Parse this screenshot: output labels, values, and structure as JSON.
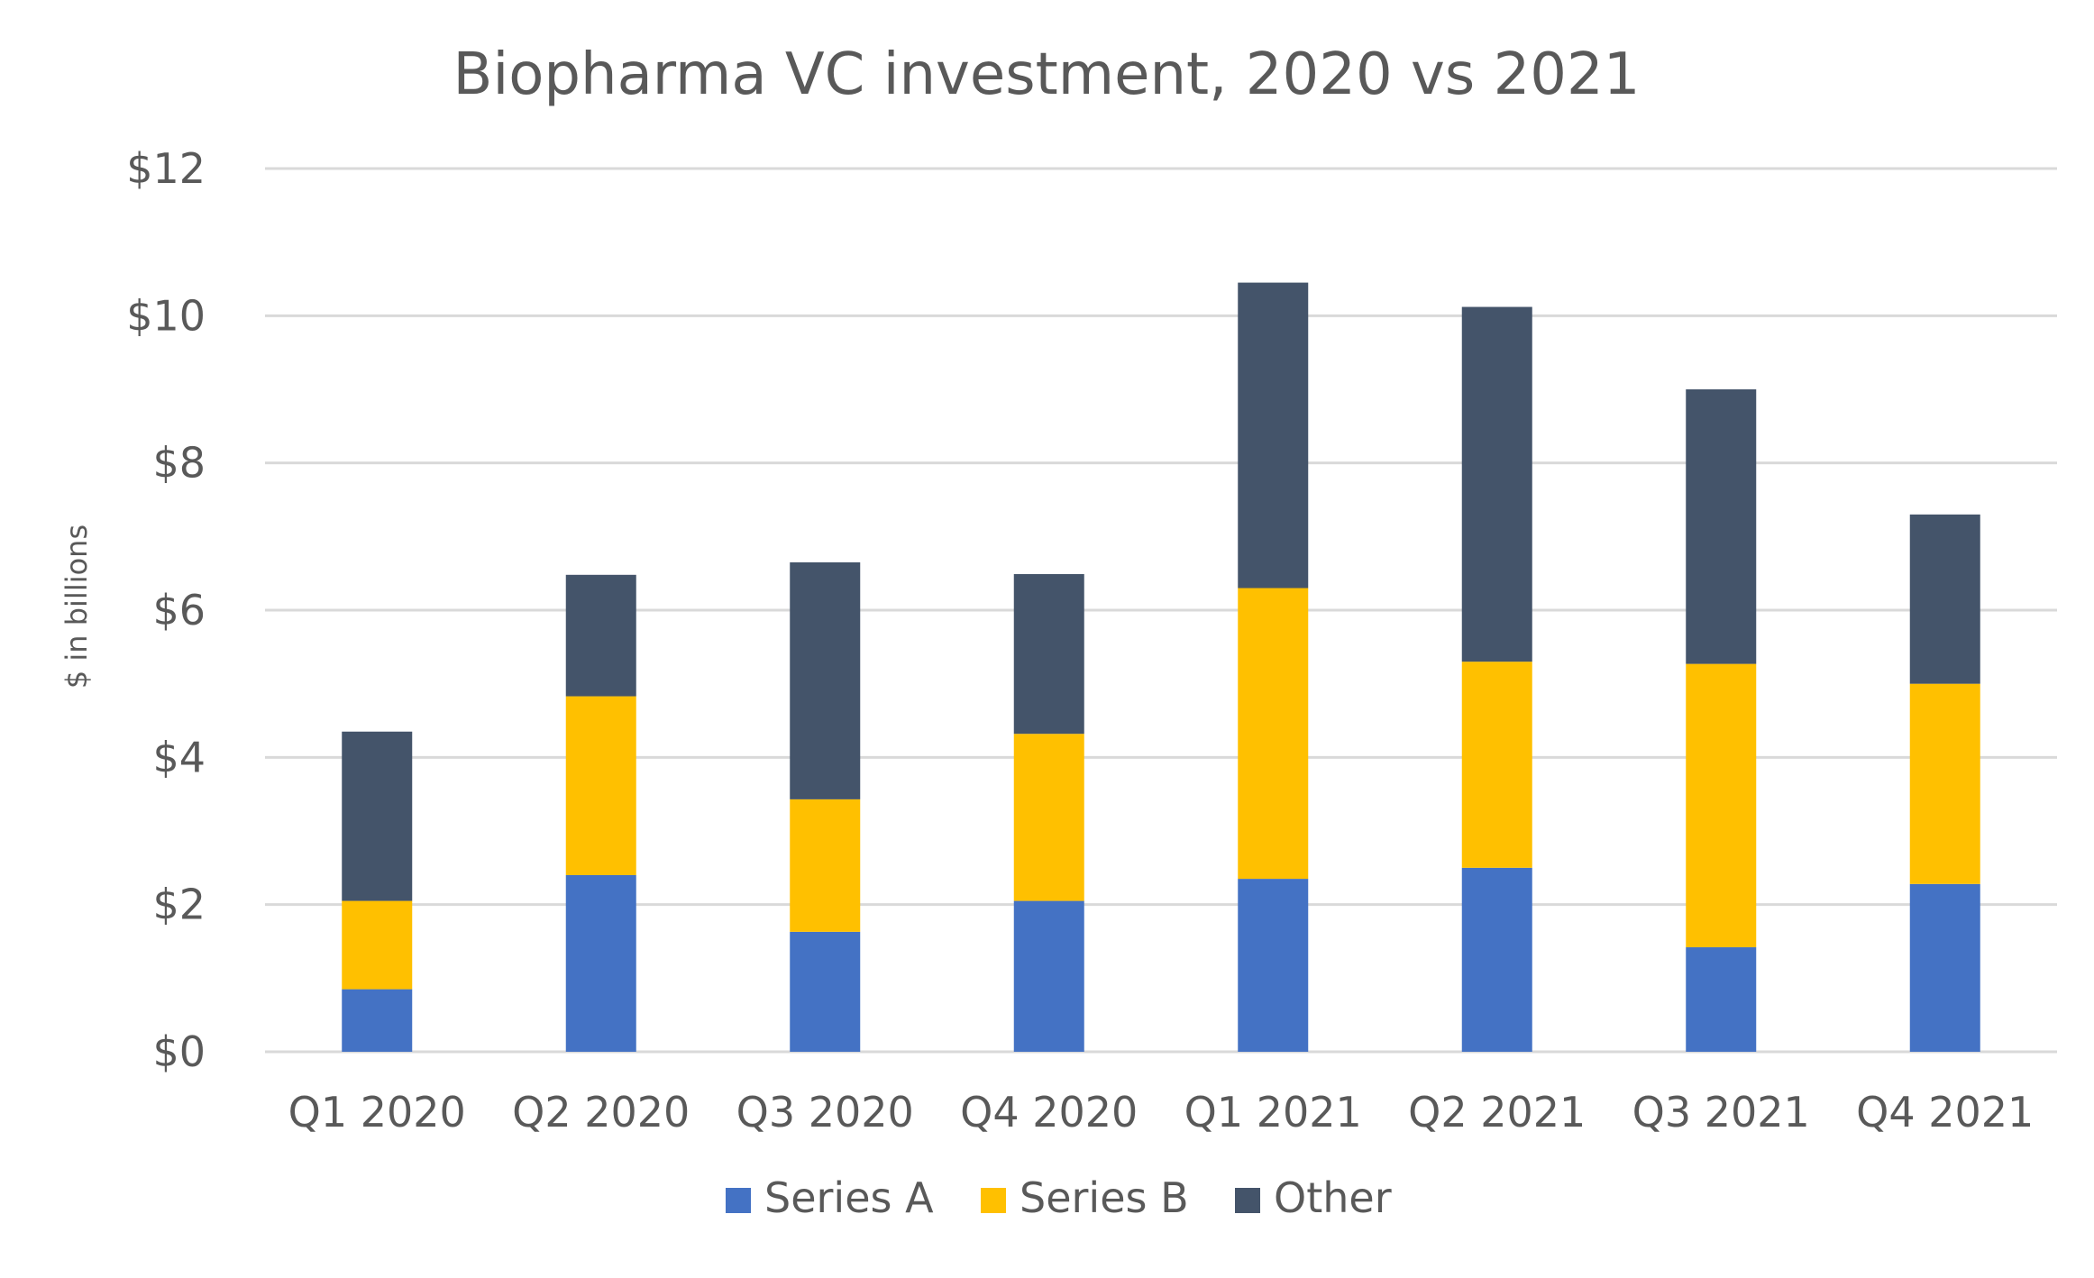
{
  "chart_data": {
    "type": "bar",
    "stacked": true,
    "title": "Biopharma VC investment, 2020 vs 2021",
    "xlabel": "",
    "ylabel": "$ in billions",
    "categories": [
      "Q1 2020",
      "Q2 2020",
      "Q3 2020",
      "Q4 2020",
      "Q1 2021",
      "Q2 2021",
      "Q3 2021",
      "Q4 2021"
    ],
    "y_ticks": [
      "$0",
      "$2",
      "$4",
      "$6",
      "$8",
      "$10",
      "$12"
    ],
    "ylim": [
      0,
      12
    ],
    "grid": true,
    "legend_position": "bottom",
    "series": [
      {
        "name": "Series A",
        "color": "#4472C4",
        "values": [
          0.85,
          2.4,
          1.63,
          2.05,
          2.35,
          2.5,
          1.42,
          2.28
        ]
      },
      {
        "name": "Series B",
        "color": "#FFC000",
        "values": [
          1.2,
          2.43,
          1.8,
          2.27,
          3.95,
          2.8,
          3.85,
          2.72
        ]
      },
      {
        "name": "Other",
        "color": "#44546A",
        "values": [
          2.3,
          1.65,
          3.22,
          2.17,
          4.15,
          4.82,
          3.73,
          2.3
        ]
      }
    ]
  }
}
